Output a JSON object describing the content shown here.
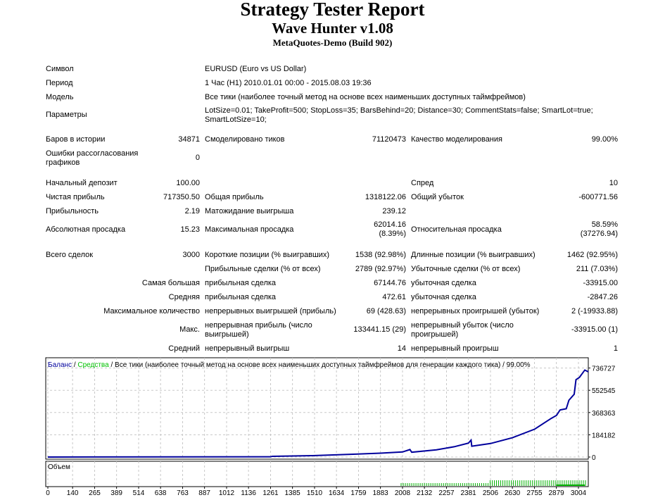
{
  "header": {
    "title": "Strategy Tester Report",
    "expert": "Wave Hunter v1.08",
    "server": "MetaQuotes-Demo (Build 902)"
  },
  "info": {
    "symbol_label": "Символ",
    "symbol": "EURUSD (Euro vs US Dollar)",
    "period_label": "Период",
    "period": "1 Час (H1) 2010.01.01 00:00 - 2015.08.03 19:36",
    "model_label": "Модель",
    "model": "Все тики (наиболее точный метод на основе всех наименьших доступных таймфреймов)",
    "params_label": "Параметры",
    "params": "LotSize=0.01; TakeProfit=500; StopLoss=35; BarsBehind=20; Distance=30; CommentStats=false; SmartLot=true; SmartLotSize=10;",
    "bars_label": "Баров в истории",
    "bars": "34871",
    "ticks_label": "Смоделировано тиков",
    "ticks": "71120473",
    "quality_label": "Качество моделирования",
    "quality": "99.00%",
    "errors_label": "Ошибки рассогласования графиков",
    "errors": "0"
  },
  "stats": {
    "deposit_label": "Начальный депозит",
    "deposit": "100.00",
    "spread_label": "Спред",
    "spread": "10",
    "net_label": "Чистая прибыль",
    "net": "717350.50",
    "gross_profit_label": "Общая прибыль",
    "gross_profit": "1318122.06",
    "gross_loss_label": "Общий убыток",
    "gross_loss": "-600771.56",
    "pf_label": "Прибыльность",
    "pf": "2.19",
    "expected_label": "Матожидание выигрыша",
    "expected": "239.12",
    "abs_dd_label": "Абсолютная просадка",
    "abs_dd": "15.23",
    "max_dd_label": "Максимальная просадка",
    "max_dd": "62014.16",
    "max_dd_pct": "(8.39%)",
    "rel_dd_label": "Относительная просадка",
    "rel_dd": "58.59%",
    "rel_dd_val": "(37276.94)",
    "total_label": "Всего сделок",
    "total": "3000",
    "short_label": "Короткие позиции (% выигравших)",
    "short": "1538 (92.98%)",
    "long_label": "Длинные позиции (% выигравших)",
    "long": "1462 (92.95%)",
    "profit_trades_label": "Прибыльные сделки (% от всех)",
    "profit_trades": "2789 (92.97%)",
    "loss_trades_label": "Убыточные сделки (% от всех)",
    "loss_trades": "211 (7.03%)",
    "largest_label": "Самая большая",
    "largest_profit_label": "прибыльная сделка",
    "largest_profit": "67144.76",
    "largest_loss_label": "убыточная сделка",
    "largest_loss": "-33915.00",
    "avg_label": "Средняя",
    "avg_profit_label": "прибыльная сделка",
    "avg_profit": "472.61",
    "avg_loss_label": "убыточная сделка",
    "avg_loss": "-2847.26",
    "maxcount_label": "Максимальное количество",
    "cons_wins_label": "непрерывных выигрышей (прибыль)",
    "cons_wins": "69 (428.63)",
    "cons_losses_label": "непрерывных проигрышей (убыток)",
    "cons_losses": "2 (-19933.88)",
    "max_label": "Макс.",
    "cons_profit_label": "непрерывная прибыль (число выигрышей)",
    "cons_profit": "133441.15 (29)",
    "cons_loss_label": "непрерывный убыток (число проигрышей)",
    "cons_loss": "-33915.00 (1)",
    "avgcons_label": "Средний",
    "avg_cons_win_label": "непрерывный выигрыш",
    "avg_cons_win": "14",
    "avg_cons_loss_label": "непрерывный проигрыш",
    "avg_cons_loss": "1"
  },
  "chart_data": {
    "type": "line",
    "legend": {
      "balance": "Баланс",
      "equity": "Средства",
      "sep": " / ",
      "desc": " / Все тики (наиболее точный метод на основе всех наименьших доступных таймфреймов для генерации каждого тика) / 99.00%"
    },
    "volume_label": "Объем",
    "yticks": [
      0,
      184182,
      368363,
      552545,
      736727
    ],
    "xticks": [
      0,
      140,
      265,
      389,
      514,
      638,
      763,
      887,
      1012,
      1136,
      1261,
      1385,
      1510,
      1634,
      1759,
      1883,
      2008,
      2132,
      2257,
      2381,
      2506,
      2630,
      2755,
      2879,
      3004
    ],
    "xlim": [
      0,
      3060
    ],
    "ylim": [
      0,
      736727
    ],
    "balance": [
      [
        0,
        100
      ],
      [
        1261,
        2000
      ],
      [
        1270,
        6000
      ],
      [
        1500,
        12000
      ],
      [
        1700,
        22000
      ],
      [
        1883,
        32000
      ],
      [
        2008,
        42000
      ],
      [
        2050,
        62000
      ],
      [
        2060,
        40000
      ],
      [
        2200,
        60000
      ],
      [
        2300,
        85000
      ],
      [
        2381,
        115000
      ],
      [
        2396,
        140000
      ],
      [
        2400,
        90000
      ],
      [
        2506,
        112000
      ],
      [
        2630,
        160000
      ],
      [
        2755,
        230000
      ],
      [
        2850,
        320000
      ],
      [
        2880,
        345000
      ],
      [
        2900,
        390000
      ],
      [
        2935,
        400000
      ],
      [
        2950,
        470000
      ],
      [
        2980,
        520000
      ],
      [
        2990,
        640000
      ],
      [
        3010,
        660000
      ],
      [
        3040,
        720000
      ],
      [
        3060,
        705000
      ]
    ],
    "colors": {
      "balance": "#00009c",
      "equity": "#00c000",
      "grid": "#c8c8c8",
      "volume": "#00b000"
    }
  }
}
